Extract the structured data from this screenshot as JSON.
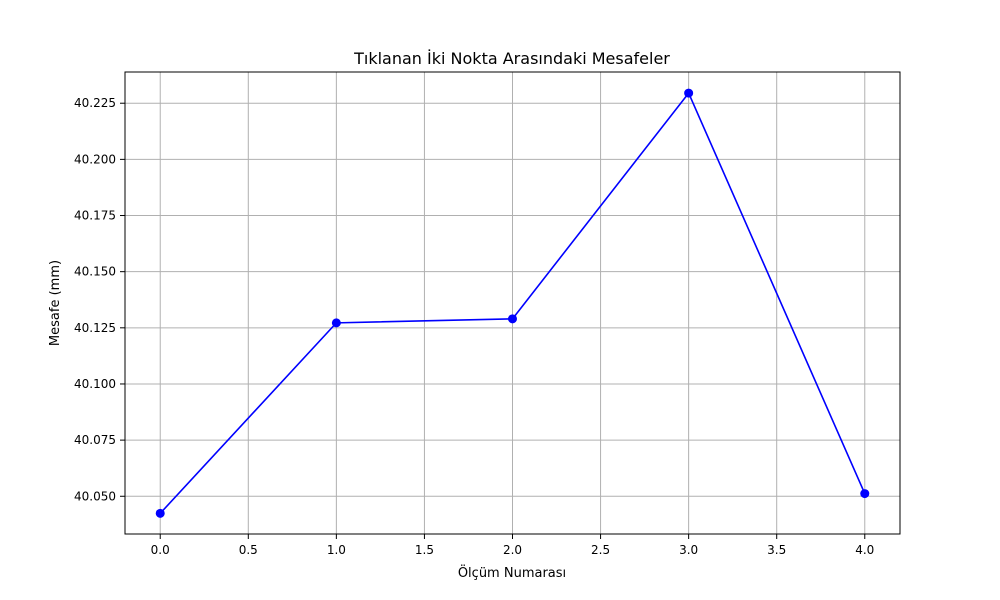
{
  "chart_data": {
    "type": "line",
    "title": "Tıklanan İki Nokta Arasındaki Mesafeler",
    "xlabel": "Ölçüm Numarası",
    "ylabel": "Mesafe (mm)",
    "x": [
      0,
      1,
      2,
      3,
      4
    ],
    "series": [
      {
        "values": [
          40.0424,
          40.1272,
          40.129,
          40.2295,
          40.0512
        ],
        "color": "#0000ff",
        "marker": "circle"
      }
    ],
    "xlim": [
      -0.2,
      4.2
    ],
    "ylim": [
      40.0332,
      40.2389
    ],
    "xticks": [
      0.0,
      0.5,
      1.0,
      1.5,
      2.0,
      2.5,
      3.0,
      3.5,
      4.0
    ],
    "xtick_labels": [
      "0.0",
      "0.5",
      "1.0",
      "1.5",
      "2.0",
      "2.5",
      "3.0",
      "3.5",
      "4.0"
    ],
    "yticks": [
      40.05,
      40.075,
      40.1,
      40.125,
      40.15,
      40.175,
      40.2,
      40.225
    ],
    "ytick_labels": [
      "40.050",
      "40.075",
      "40.100",
      "40.125",
      "40.150",
      "40.175",
      "40.200",
      "40.225"
    ],
    "grid": true,
    "legend": false
  }
}
